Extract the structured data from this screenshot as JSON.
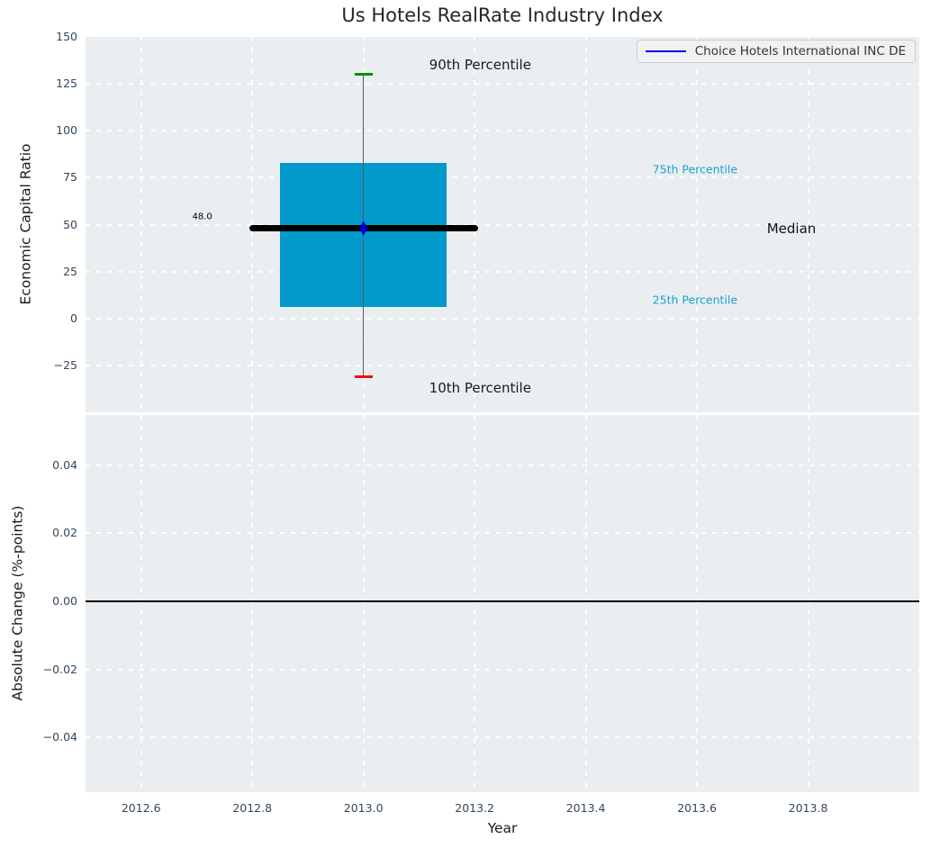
{
  "title": "Us Hotels RealRate Industry Index",
  "legend": {
    "label": "Choice Hotels International INC DE",
    "line_color": "#0000e6",
    "position": "upper right"
  },
  "colors": {
    "figure_bg": "#ffffff",
    "axes_bg": "#eaeef0",
    "grid": "#ffffff",
    "box_fill": "#029acd",
    "whisker_line": "#5a5a5a",
    "p90_cap": "#0a8f0a",
    "p10_cap": "#ee1111",
    "median_line": "#000000",
    "company_marker": "#0000cc",
    "tick_label": "#33475c",
    "axis_label": "#1a1a1a",
    "title": "#262626",
    "percentile_label": "#1b9fd4",
    "zero_line": "#000000"
  },
  "chart_data": [
    {
      "type": "boxplot",
      "ylabel": "Economic Capital Ratio",
      "ylim": [
        -50,
        150
      ],
      "yticks": {
        "values": [
          150,
          125,
          100,
          75,
          50,
          25,
          0,
          -25
        ],
        "labels": [
          "150",
          "125",
          "100",
          "75",
          "50",
          "25",
          "0",
          "−25"
        ]
      },
      "xlim": [
        2012.5,
        2014.0
      ],
      "grid": true,
      "box": {
        "x": 2013.0,
        "box_left": 2012.85,
        "box_right": 2013.15,
        "q1": 6,
        "median": 48.0,
        "q3": 83,
        "p10": -31,
        "p90": 130,
        "median_line_left": 2012.8,
        "median_line_right": 2013.2,
        "median_label": "48.0"
      },
      "company_point": {
        "series": "Choice Hotels International INC DE",
        "x": 2013.0,
        "y": 48.0
      },
      "annotations": [
        {
          "name": "annotation-90th-percentile",
          "text": "90th Percentile",
          "x": 2013.21,
          "y": 135,
          "anchor": "center",
          "color": "#1a1a1a",
          "size": 15
        },
        {
          "name": "annotation-10th-percentile",
          "text": "10th Percentile",
          "x": 2013.21,
          "y": -37,
          "anchor": "center",
          "color": "#1a1a1a",
          "size": 15
        },
        {
          "name": "annotation-75th-percentile",
          "text": "75th Percentile",
          "x": 2013.52,
          "y": 79.5,
          "anchor": "left",
          "color": "#1b9fd4",
          "size": 12.5
        },
        {
          "name": "annotation-25th-percentile",
          "text": "25th Percentile",
          "x": 2013.52,
          "y": 10,
          "anchor": "left",
          "color": "#1b9fd4",
          "size": 12.5
        },
        {
          "name": "annotation-median",
          "text": "Median",
          "x": 2013.77,
          "y": 48,
          "anchor": "center",
          "color": "#111111",
          "size": 15
        },
        {
          "name": "annotation-median-value",
          "text": "48.0",
          "x": 2012.71,
          "y": 54,
          "anchor": "center",
          "color": "#000000",
          "size": 10
        }
      ]
    },
    {
      "type": "line",
      "ylabel": "Absolute Change (%-points)",
      "xlabel": "Year",
      "ylim": [
        -0.0561,
        0.0548
      ],
      "yticks": {
        "values": [
          0.04,
          0.02,
          0,
          -0.02,
          -0.04
        ],
        "labels": [
          "0.04",
          "0.02",
          "0.00",
          "−0.02",
          "−0.04"
        ]
      },
      "xlim": [
        2012.5,
        2014.0
      ],
      "xticks": {
        "values": [
          2012.6,
          2012.8,
          2013.0,
          2013.2,
          2013.4,
          2013.6,
          2013.8
        ],
        "labels": [
          "2012.6",
          "2012.8",
          "2013.0",
          "2013.2",
          "2013.4",
          "2013.6",
          "2013.8"
        ]
      },
      "grid": true,
      "zero_line": 0.0,
      "series": []
    }
  ]
}
